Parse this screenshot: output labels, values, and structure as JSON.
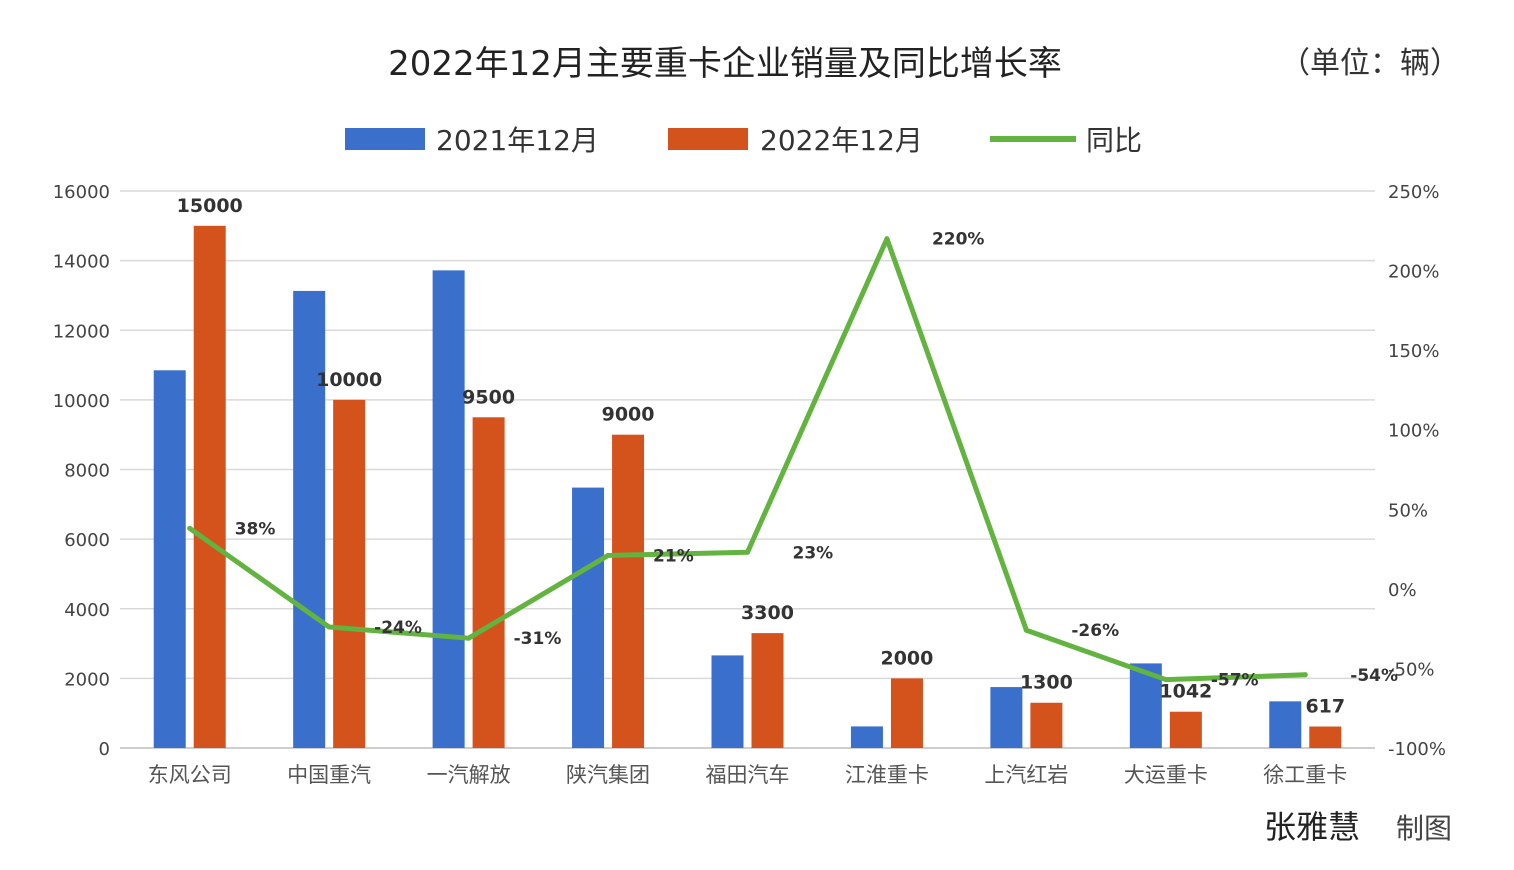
{
  "chart_data": {
    "type": "bar",
    "title": "2022年12月主要重卡企业销量及同比增长率",
    "unit_note": "（单位：辆）",
    "categories": [
      "东风公司",
      "中国重汽",
      "一汽解放",
      "陕汽集团",
      "福田汽车",
      "江淮重卡",
      "上汽红岩",
      "大运重卡",
      "徐工重卡"
    ],
    "series": [
      {
        "name": "2021年12月",
        "type": "bar",
        "axis": "left",
        "color": "#3a6fcc",
        "values": [
          10850,
          13130,
          13720,
          7480,
          2660,
          620,
          1750,
          2430,
          1340
        ]
      },
      {
        "name": "2022年12月",
        "type": "bar",
        "axis": "left",
        "color": "#d4521c",
        "values": [
          15000,
          10000,
          9500,
          9000,
          3300,
          2000,
          1300,
          1042,
          617
        ],
        "labels": [
          "15000",
          "10000",
          "9500",
          "9000",
          "3300",
          "2000",
          "1300",
          "1042",
          "617"
        ]
      },
      {
        "name": "同比",
        "type": "line",
        "axis": "right",
        "color": "#62b33f",
        "values": [
          38,
          -24,
          -31,
          21,
          23,
          220,
          -26,
          -57,
          -54
        ],
        "labels": [
          "38%",
          "-24%",
          "-31%",
          "21%",
          "23%",
          "220%",
          "-26%",
          "-57%",
          "-54%"
        ]
      }
    ],
    "y_left": {
      "range": [
        0,
        16000
      ],
      "ticks": [
        "0",
        "2000",
        "4000",
        "6000",
        "8000",
        "10000",
        "12000",
        "14000",
        "16000"
      ]
    },
    "y_right": {
      "range": [
        -100,
        250
      ],
      "ticks": [
        "-100%",
        "-50%",
        "0%",
        "50%",
        "100%",
        "150%",
        "200%",
        "250%"
      ]
    },
    "grid": true,
    "legend_position": "top-center"
  },
  "credit": {
    "name": "张雅慧",
    "suffix": "制图"
  }
}
